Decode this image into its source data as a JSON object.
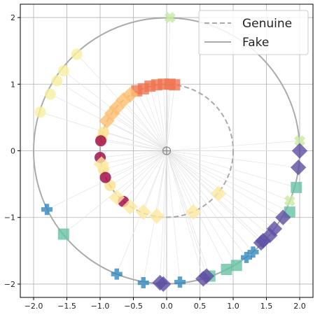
{
  "chart_data": {
    "type": "scatter",
    "title": "",
    "xlabel": "",
    "ylabel": "",
    "xlim": [
      -2.2,
      2.2
    ],
    "ylim": [
      -2.2,
      2.2
    ],
    "x_ticks": [
      -2.0,
      -1.5,
      -1.0,
      -0.5,
      0.0,
      0.5,
      1.0,
      1.5,
      2.0
    ],
    "y_ticks": [
      -2,
      -1,
      0,
      1,
      2
    ],
    "x_tick_labels": [
      "−2.0",
      "−1.5",
      "−1.0",
      "−0.5",
      "0.0",
      "0.5",
      "1.0",
      "1.5",
      "2.0"
    ],
    "y_tick_labels": [
      "−2",
      "−1",
      "0",
      "1",
      "2"
    ],
    "grid": true,
    "legend": {
      "placement": "top-right",
      "entries": [
        {
          "label": "Genuine",
          "style": "dashed",
          "color": "#aaaaaa"
        },
        {
          "label": "Fake",
          "style": "solid",
          "color": "#aaaaaa"
        }
      ]
    },
    "circles": [
      {
        "name": "Genuine",
        "center": [
          0,
          0
        ],
        "radius": 1.0,
        "style": "dashed",
        "color": "#aaaaaa"
      },
      {
        "name": "Fake",
        "center": [
          0,
          0
        ],
        "radius": 2.0,
        "style": "solid",
        "color": "#aaaaaa"
      }
    ],
    "origin_marker": {
      "x": 0,
      "y": 0
    },
    "marker_groups": [
      {
        "marker": "square",
        "color": "#f07350",
        "points": [
          [
            -0.25,
            0.97
          ],
          [
            -0.35,
            0.93
          ],
          [
            -0.15,
            0.99
          ],
          [
            -0.05,
            1.0
          ],
          [
            0.05,
            1.0
          ],
          [
            0.12,
            0.99
          ],
          [
            -0.45,
            0.9
          ]
        ]
      },
      {
        "marker": "diamond",
        "color": "#fdbe6e",
        "points": [
          [
            -0.55,
            0.84
          ],
          [
            -0.65,
            0.76
          ],
          [
            -0.75,
            0.65
          ],
          [
            -0.82,
            0.56
          ],
          [
            -0.9,
            0.45
          ]
        ]
      },
      {
        "marker": "circle",
        "color": "#fee28a",
        "points": [
          [
            -0.95,
            0.28
          ],
          [
            -0.98,
            0.18
          ],
          [
            -0.95,
            -0.28
          ],
          [
            -0.85,
            -0.52
          ]
        ]
      },
      {
        "marker": "circle",
        "color": "#9e0142",
        "points": [
          [
            -0.99,
            0.15
          ],
          [
            -1.0,
            -0.1
          ],
          [
            -0.92,
            -0.4
          ],
          [
            -0.65,
            -0.76
          ]
        ]
      },
      {
        "marker": "diamond",
        "color": "#fee8a0",
        "points": [
          [
            -0.98,
            -0.2
          ],
          [
            -0.75,
            -0.7
          ],
          [
            -0.55,
            -0.84
          ],
          [
            -0.35,
            -0.92
          ],
          [
            -0.15,
            -0.98
          ],
          [
            0.4,
            -0.92
          ],
          [
            0.78,
            -0.64
          ]
        ]
      },
      {
        "marker": "circle",
        "color": "#f6f0a0",
        "points": [
          [
            -1.35,
            1.45
          ],
          [
            -1.55,
            1.2
          ],
          [
            -1.65,
            1.05
          ],
          [
            -1.75,
            0.85
          ],
          [
            -1.9,
            0.58
          ]
        ]
      },
      {
        "marker": "x",
        "color": "#c8eaa0",
        "points": [
          [
            0.05,
            2.0
          ],
          [
            2.0,
            0.15
          ],
          [
            1.85,
            -0.75
          ]
        ]
      },
      {
        "marker": "plus",
        "color": "#3288bd",
        "points": [
          [
            -1.8,
            -0.88
          ],
          [
            -0.75,
            -1.85
          ],
          [
            -0.35,
            -1.98
          ],
          [
            0.2,
            -1.97
          ],
          [
            1.2,
            -1.6
          ],
          [
            1.3,
            -1.52
          ]
        ]
      },
      {
        "marker": "square",
        "color": "#66c2a5",
        "points": [
          [
            -1.55,
            -1.25
          ],
          [
            1.95,
            -0.55
          ],
          [
            1.85,
            -0.92
          ],
          [
            0.65,
            -1.88
          ],
          [
            0.9,
            -1.78
          ],
          [
            1.05,
            -1.72
          ]
        ]
      },
      {
        "marker": "diamond",
        "color": "#5e4fa2",
        "points": [
          [
            2.0,
            0.0
          ],
          [
            1.98,
            -0.25
          ],
          [
            1.75,
            -1.0
          ],
          [
            1.62,
            -1.17
          ],
          [
            1.55,
            -1.27
          ],
          [
            1.45,
            -1.35
          ],
          [
            1.42,
            -1.38
          ],
          [
            0.55,
            -1.92
          ],
          [
            0.6,
            -1.88
          ],
          [
            -0.1,
            -1.98
          ],
          [
            -0.05,
            -2.0
          ]
        ]
      }
    ]
  }
}
